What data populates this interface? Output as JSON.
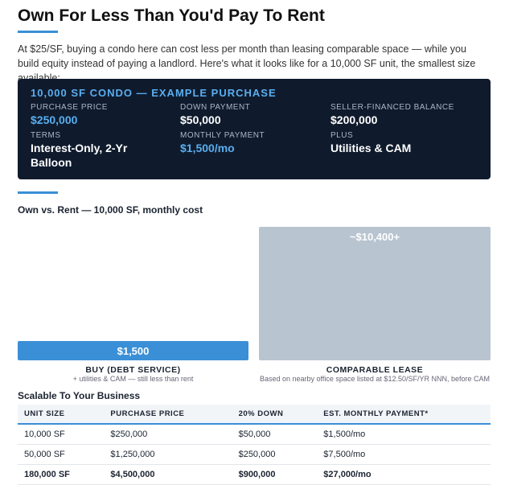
{
  "header": {
    "title": "Own For Less Than You'd Pay To Rent",
    "intro": "At $25/SF, buying a condo here can cost less per month than leasing comparable space — while you build equity instead of paying a landlord. Here's what it looks like for a 10,000 SF unit, the smallest size available:"
  },
  "example": {
    "title": "10,000 SF CONDO — EXAMPLE PURCHASE",
    "fields": [
      {
        "label": "PURCHASE PRICE",
        "value": "$250,000"
      },
      {
        "label": "DOWN PAYMENT",
        "value": "$50,000"
      },
      {
        "label": "SELLER-FINANCED BALANCE",
        "value": "$200,000"
      },
      {
        "label": "TERMS",
        "value": "Interest-Only, 2-Yr Balloon"
      },
      {
        "label": "MONTHLY PAYMENT",
        "value": "$1,500/mo"
      },
      {
        "label": "PLUS",
        "value": "Utilities & CAM"
      }
    ]
  },
  "chart_data": {
    "type": "bar",
    "title": "Own vs. Rent — 10,000 SF, monthly cost",
    "categories": [
      "BUY (DEBT SERVICE)",
      "COMPARABLE LEASE"
    ],
    "category_notes": [
      "+ utilities & CAM — still less than rent",
      "Based on nearby office space listed at $12.50/SF/YR NNN, before CAM"
    ],
    "values": [
      1500,
      10400
    ],
    "value_labels": [
      "$1,500",
      "~$10,400+"
    ],
    "colors": [
      "#3a8fd6",
      "#b8c4d0"
    ]
  },
  "table": {
    "title": "Scalable To Your Business",
    "columns": [
      "UNIT SIZE",
      "PURCHASE PRICE",
      "20% DOWN",
      "EST. MONTHLY PAYMENT*"
    ],
    "rows": [
      [
        "10,000 SF",
        "$250,000",
        "$50,000",
        "$1,500/mo"
      ],
      [
        "50,000 SF",
        "$1,250,000",
        "$250,000",
        "$7,500/mo"
      ],
      [
        "180,000 SF",
        "$4,500,000",
        "$900,000",
        "$27,000/mo"
      ]
    ]
  }
}
